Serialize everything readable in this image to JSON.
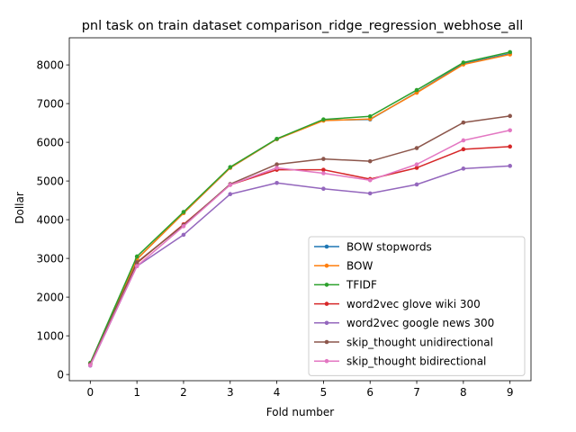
{
  "chart_data": {
    "type": "line",
    "title": "pnl task on train dataset comparison_ridge_regression_webhose_all",
    "xlabel": "Fold number",
    "ylabel": "Dollar",
    "x": [
      0,
      1,
      2,
      3,
      4,
      5,
      6,
      7,
      8,
      9
    ],
    "xlim": [
      -0.45,
      9.45
    ],
    "ylim": [
      -160,
      8700
    ],
    "xticks": [
      "0",
      "1",
      "2",
      "3",
      "4",
      "5",
      "6",
      "7",
      "8",
      "9"
    ],
    "yticks": [
      "0",
      "1000",
      "2000",
      "3000",
      "4000",
      "5000",
      "6000",
      "7000",
      "8000"
    ],
    "grid": false,
    "legend_position": "lower-right",
    "series": [
      {
        "name": "BOW stopwords",
        "color": "#1f77b4",
        "values": [
          280,
          2980,
          4170,
          5340,
          6080,
          6570,
          6590,
          7290,
          8030,
          8290
        ]
      },
      {
        "name": "BOW",
        "color": "#ff7f0e",
        "values": [
          280,
          2980,
          4170,
          5340,
          6080,
          6560,
          6600,
          7280,
          8010,
          8270
        ]
      },
      {
        "name": "TFIDF",
        "color": "#2ca02c",
        "values": [
          300,
          3050,
          4200,
          5360,
          6090,
          6590,
          6670,
          7350,
          8060,
          8330
        ]
      },
      {
        "name": "word2vec glove wiki 300",
        "color": "#d62728",
        "values": [
          260,
          2880,
          3880,
          4900,
          5290,
          5290,
          5050,
          5340,
          5820,
          5890
        ]
      },
      {
        "name": "word2vec google news 300",
        "color": "#9467bd",
        "values": [
          230,
          2800,
          3610,
          4660,
          4950,
          4800,
          4680,
          4910,
          5320,
          5390
        ]
      },
      {
        "name": "skip_thought unidirectional",
        "color": "#8c564b",
        "values": [
          270,
          2900,
          3860,
          4920,
          5430,
          5570,
          5510,
          5850,
          6510,
          6680
        ]
      },
      {
        "name": "skip_thought bidirectional",
        "color": "#e377c2",
        "values": [
          240,
          2800,
          3830,
          4900,
          5340,
          5200,
          5020,
          5430,
          6050,
          6310
        ]
      }
    ]
  }
}
